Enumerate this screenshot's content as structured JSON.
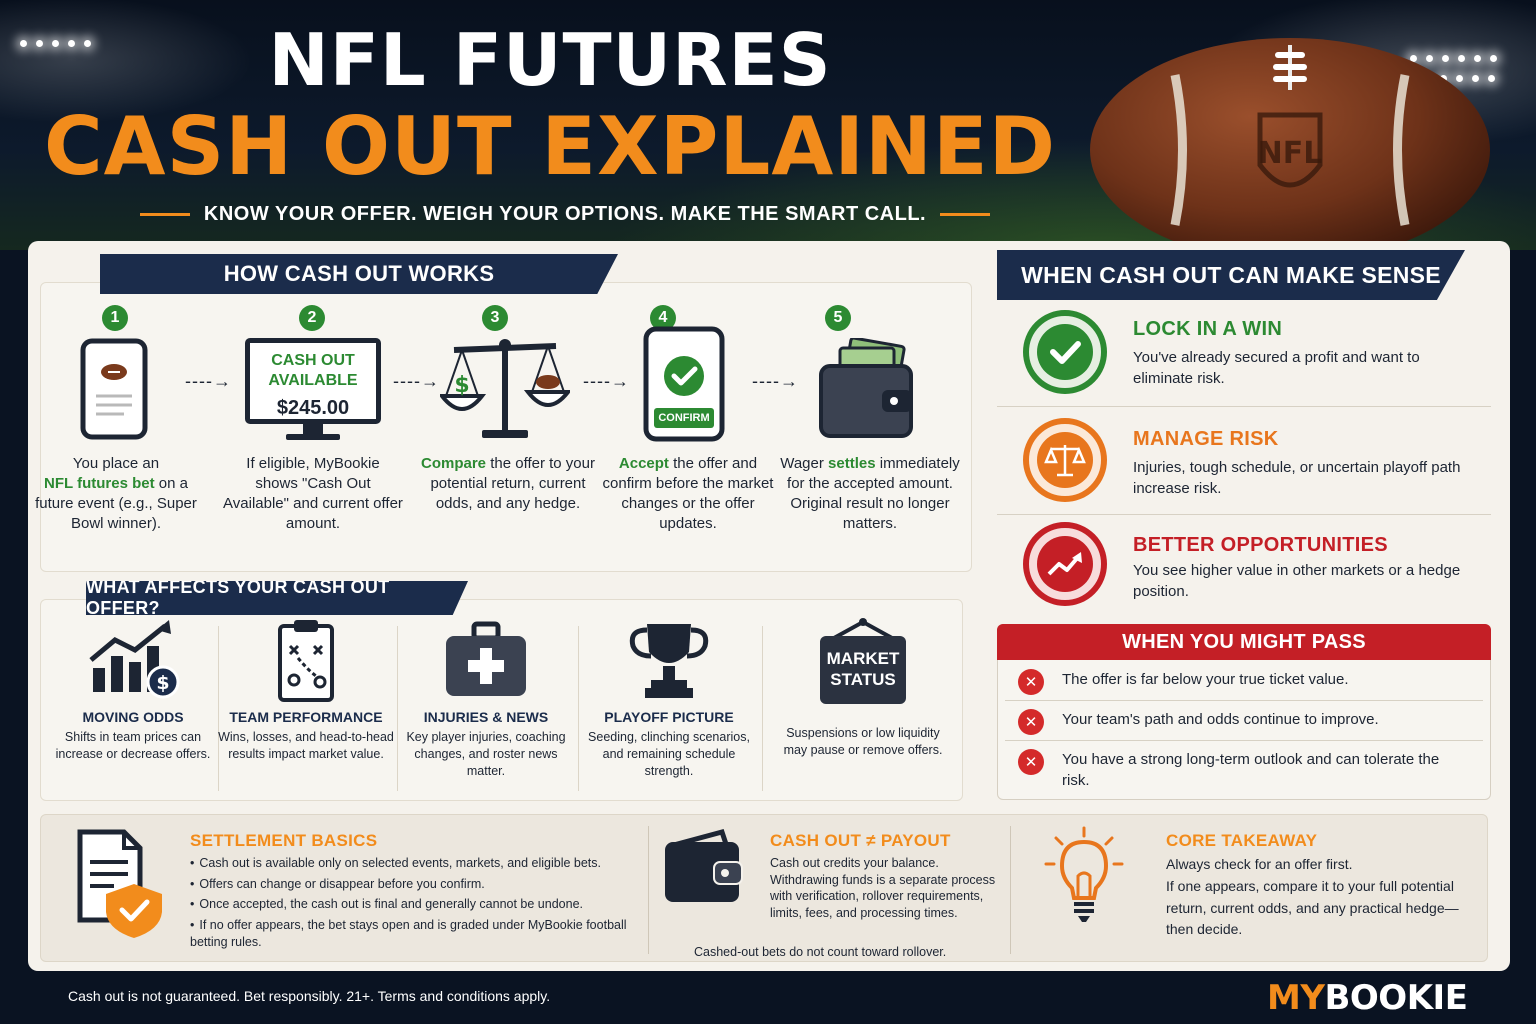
{
  "header": {
    "title_line1": "NFL FUTURES",
    "title_line2": "CASH OUT EXPLAINED",
    "tagline": "KNOW YOUR OFFER.  WEIGH YOUR OPTIONS.  MAKE THE SMART CALL."
  },
  "how_it_works": {
    "title": "HOW CASH OUT WORKS",
    "screen": {
      "line1": "CASH OUT",
      "line2": "AVAILABLE",
      "amount": "$245.00"
    },
    "confirm_label": "CONFIRM",
    "steps": [
      {
        "num": "1",
        "pre": "You place an",
        "bold": "NFL futures bet",
        "post": "on a future event (e.g., Super Bowl winner)."
      },
      {
        "num": "2",
        "pre": "",
        "bold": "",
        "post": "If eligible, MyBookie shows \"Cash Out Available\" and current offer amount."
      },
      {
        "num": "3",
        "pre": "",
        "bold": "Compare",
        "post": "the offer to your potential return, current odds, and any hedge."
      },
      {
        "num": "4",
        "pre": "",
        "bold": "Accept",
        "post": "the offer and confirm before the market changes or the offer updates."
      },
      {
        "num": "5",
        "pre": "Wager",
        "bold": "settles",
        "post": "immediately for the accepted amount. Original result no longer matters."
      }
    ]
  },
  "affects": {
    "title": "WHAT AFFECTS YOUR CASH OUT OFFER?",
    "market_sign": {
      "line1": "MARKET",
      "line2": "STATUS"
    },
    "items": [
      {
        "title": "MOVING ODDS",
        "text": "Shifts in team prices can increase or decrease offers.",
        "icon": "chart-dollar-icon"
      },
      {
        "title": "TEAM PERFORMANCE",
        "text": "Wins, losses, and head-to-head results impact market value.",
        "icon": "clipboard-play-icon"
      },
      {
        "title": "INJURIES & NEWS",
        "text": "Key player injuries, coaching changes, and roster news matter.",
        "icon": "first-aid-kit-icon"
      },
      {
        "title": "PLAYOFF PICTURE",
        "text": "Seeding, clinching scenarios, and remaining schedule strength.",
        "icon": "trophy-icon"
      },
      {
        "title": "",
        "text": "Suspensions or low liquidity may pause or remove offers.",
        "icon": "market-status-sign-icon"
      }
    ]
  },
  "sense": {
    "title": "WHEN CASH OUT CAN MAKE SENSE",
    "items": [
      {
        "title": "LOCK IN A WIN",
        "text": "You've already secured a profit and want to eliminate risk.",
        "color": "#2c8a32"
      },
      {
        "title": "MANAGE RISK",
        "text": "Injuries, tough schedule, or uncertain playoff path increase risk.",
        "color": "#e8761d"
      },
      {
        "title": "BETTER OPPORTUNITIES",
        "text": "You see higher value in other markets or a hedge position.",
        "color": "#c41f26"
      }
    ]
  },
  "pass": {
    "title": "WHEN YOU MIGHT PASS",
    "items": [
      "The offer is far below your true ticket value.",
      "Your team's path and odds continue to improve.",
      "You have a strong long-term outlook and can tolerate the risk."
    ]
  },
  "settlement": {
    "title": "SETTLEMENT BASICS",
    "bullets": [
      "Cash out is available only on selected events, markets, and eligible bets.",
      "Offers can change or disappear before you confirm.",
      "Once accepted, the cash out is final and generally cannot be undone.",
      "If no offer appears, the bet stays open and is graded under MyBookie football betting rules."
    ]
  },
  "payout": {
    "title": "CASH OUT ≠ PAYOUT",
    "text": "Cash out credits your balance. Withdrawing funds is a separate process with verification, rollover requirements, limits, fees, and processing times.",
    "note": "Cashed-out bets do not count toward rollover."
  },
  "takeaway": {
    "title": "CORE TAKEAWAY",
    "line1": "Always check for an offer first.",
    "line2": "If one appears, compare it to your full potential return, current odds, and any practical hedge—then decide."
  },
  "footer": {
    "disclaimer": "Cash out is not guaranteed. Bet responsibly. 21+.  Terms and conditions apply.",
    "brand_my": "MY",
    "brand_bookie": "BOOKIE"
  },
  "colors": {
    "navy": "#1b2c4b",
    "orange": "#f28c1c",
    "green": "#2c8a32",
    "red": "#c41f26"
  }
}
